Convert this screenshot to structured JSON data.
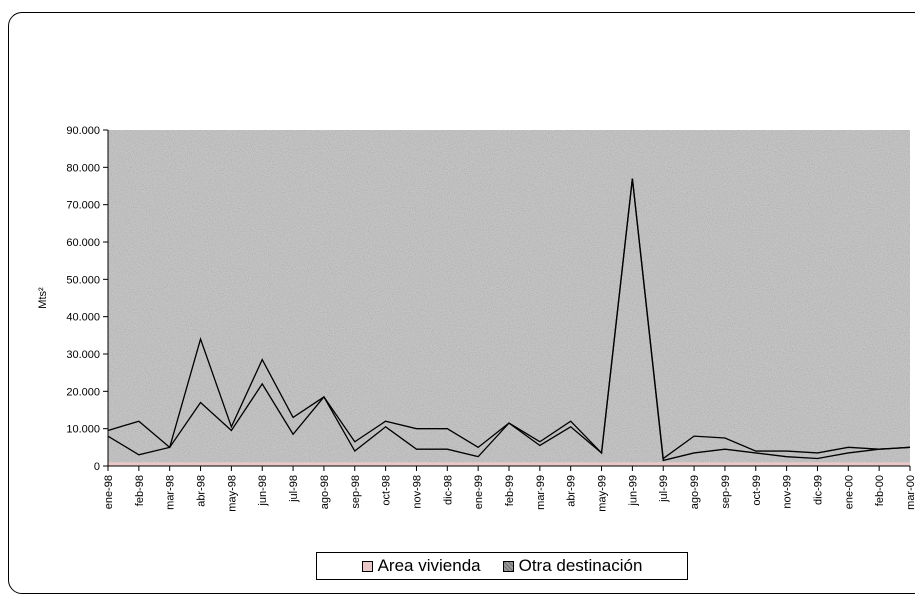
{
  "chart_data": {
    "type": "area",
    "stacked": true,
    "ylabel": "Mts²",
    "ylim": [
      0,
      90000
    ],
    "ytick_labels": [
      "0",
      "10.000",
      "20.000",
      "30.000",
      "40.000",
      "50.000",
      "60.000",
      "70.000",
      "80.000",
      "90.000"
    ],
    "yticks": [
      0,
      10000,
      20000,
      30000,
      40000,
      50000,
      60000,
      70000,
      80000,
      90000
    ],
    "categories": [
      "ene-98",
      "feb-98",
      "mar-98",
      "abr-98",
      "may-98",
      "jun-98",
      "jul-98",
      "ago-98",
      "sep-98",
      "oct-98",
      "nov-98",
      "dic-98",
      "ene-99",
      "feb-99",
      "mar-99",
      "abr-99",
      "may-99",
      "jun-99",
      "jul-99",
      "ago-99",
      "sep-99",
      "oct-99",
      "nov-99",
      "dic-99",
      "ene-00",
      "feb-00",
      "mar-00"
    ],
    "series": [
      {
        "name": "Area vivienda",
        "color": "#e8c8c8",
        "values": [
          8000,
          3000,
          5000,
          17000,
          9500,
          22000,
          8500,
          18500,
          4000,
          10500,
          4500,
          4500,
          2500,
          11500,
          5500,
          10500,
          3500,
          77000,
          1500,
          3500,
          4500,
          3500,
          2500,
          2000,
          3500,
          4500,
          5000
        ]
      },
      {
        "name": "Otra destinación",
        "color": "#9a9a9a",
        "values": [
          1500,
          9000,
          0,
          17000,
          1000,
          6500,
          4500,
          0,
          2500,
          1500,
          5500,
          5500,
          2500,
          0,
          1000,
          1500,
          0,
          0,
          500,
          4500,
          3000,
          500,
          1500,
          1500,
          1500,
          0,
          0
        ]
      }
    ],
    "grid": false,
    "legend_position": "bottom"
  },
  "legend": {
    "vivienda_label": "Area vivienda",
    "otra_label": "Otra destinación"
  }
}
